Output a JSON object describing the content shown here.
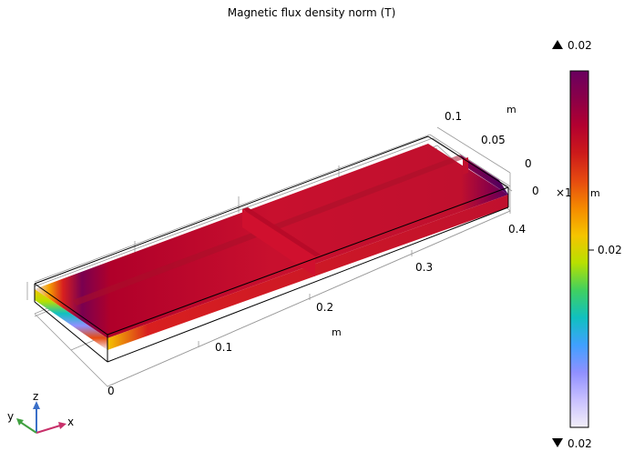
{
  "chart_data": {
    "type": "heatmap",
    "title": "Magnetic flux density norm (T)",
    "quantity": "Magnetic flux density norm",
    "unit": "T",
    "x_axis": {
      "unit": "m",
      "ticks": [
        "0",
        "0.1",
        "0.2",
        "0.3",
        "0.4"
      ],
      "range": [
        0,
        0.4
      ]
    },
    "y_axis": {
      "unit": "m",
      "ticks": [
        "0",
        "0.05",
        "0.1"
      ],
      "range": [
        0,
        0.1
      ]
    },
    "z_axis": {
      "unit": "m",
      "ticks": [
        "0"
      ]
    },
    "colorbar": {
      "max_label": "0.02",
      "min_label": "0.02",
      "mid_label": "0.02",
      "multiplier_label": "×1",
      "unit_label": "m",
      "colormap": [
        "#6a005f",
        "#8a0048",
        "#b30030",
        "#cc1a1a",
        "#e64a10",
        "#f58a00",
        "#f5c400",
        "#b8e000",
        "#40d060",
        "#10c0c0",
        "#40a0ff",
        "#9090ff",
        "#c8c0ff",
        "#f2eef8"
      ]
    },
    "grid": true,
    "view": "3d-isometric",
    "dominant_color": "#c8102e"
  },
  "triad": {
    "x": "x",
    "y": "y",
    "z": "z"
  }
}
